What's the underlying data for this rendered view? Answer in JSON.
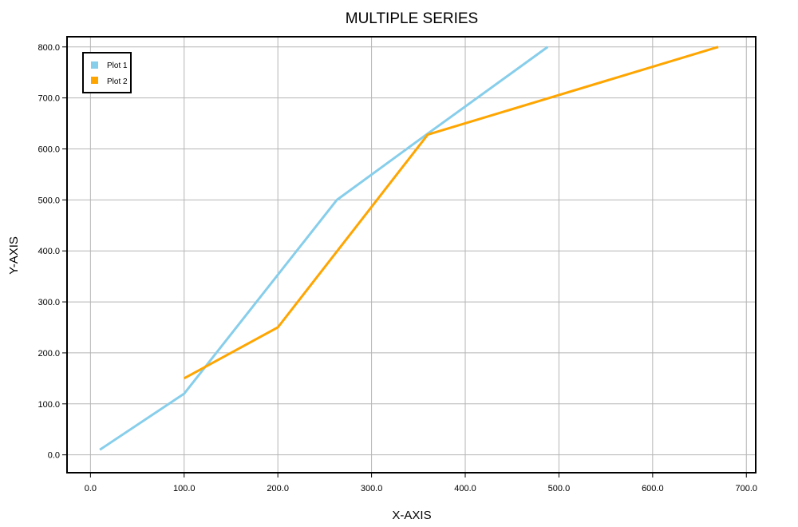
{
  "chart_data": {
    "type": "line",
    "title": "MULTIPLE SERIES",
    "xlabel": "X-AXIS",
    "ylabel": "Y-AXIS",
    "xlim": [
      -25,
      710
    ],
    "ylim": [
      -35,
      820
    ],
    "x_ticks": [
      0,
      100,
      200,
      300,
      400,
      500,
      600,
      700
    ],
    "x_tick_labels": [
      "0.0",
      "100.0",
      "200.0",
      "300.0",
      "400.0",
      "500.0",
      "600.0",
      "700.0"
    ],
    "y_ticks": [
      0,
      100,
      200,
      300,
      400,
      500,
      600,
      700,
      800
    ],
    "y_tick_labels": [
      "0.0",
      "100.0",
      "200.0",
      "300.0",
      "400.0",
      "500.0",
      "600.0",
      "700.0",
      "800.0"
    ],
    "grid": true,
    "legend_position": "top-left",
    "series": [
      {
        "name": "Plot 1",
        "color": "#87ceeb",
        "x": [
          10,
          100,
          263,
          360,
          488
        ],
        "y": [
          10,
          120,
          500,
          630,
          800
        ]
      },
      {
        "name": "Plot 2",
        "color": "#ffa500",
        "x": [
          100,
          200,
          360,
          670
        ],
        "y": [
          150,
          250,
          628,
          800
        ]
      }
    ]
  }
}
